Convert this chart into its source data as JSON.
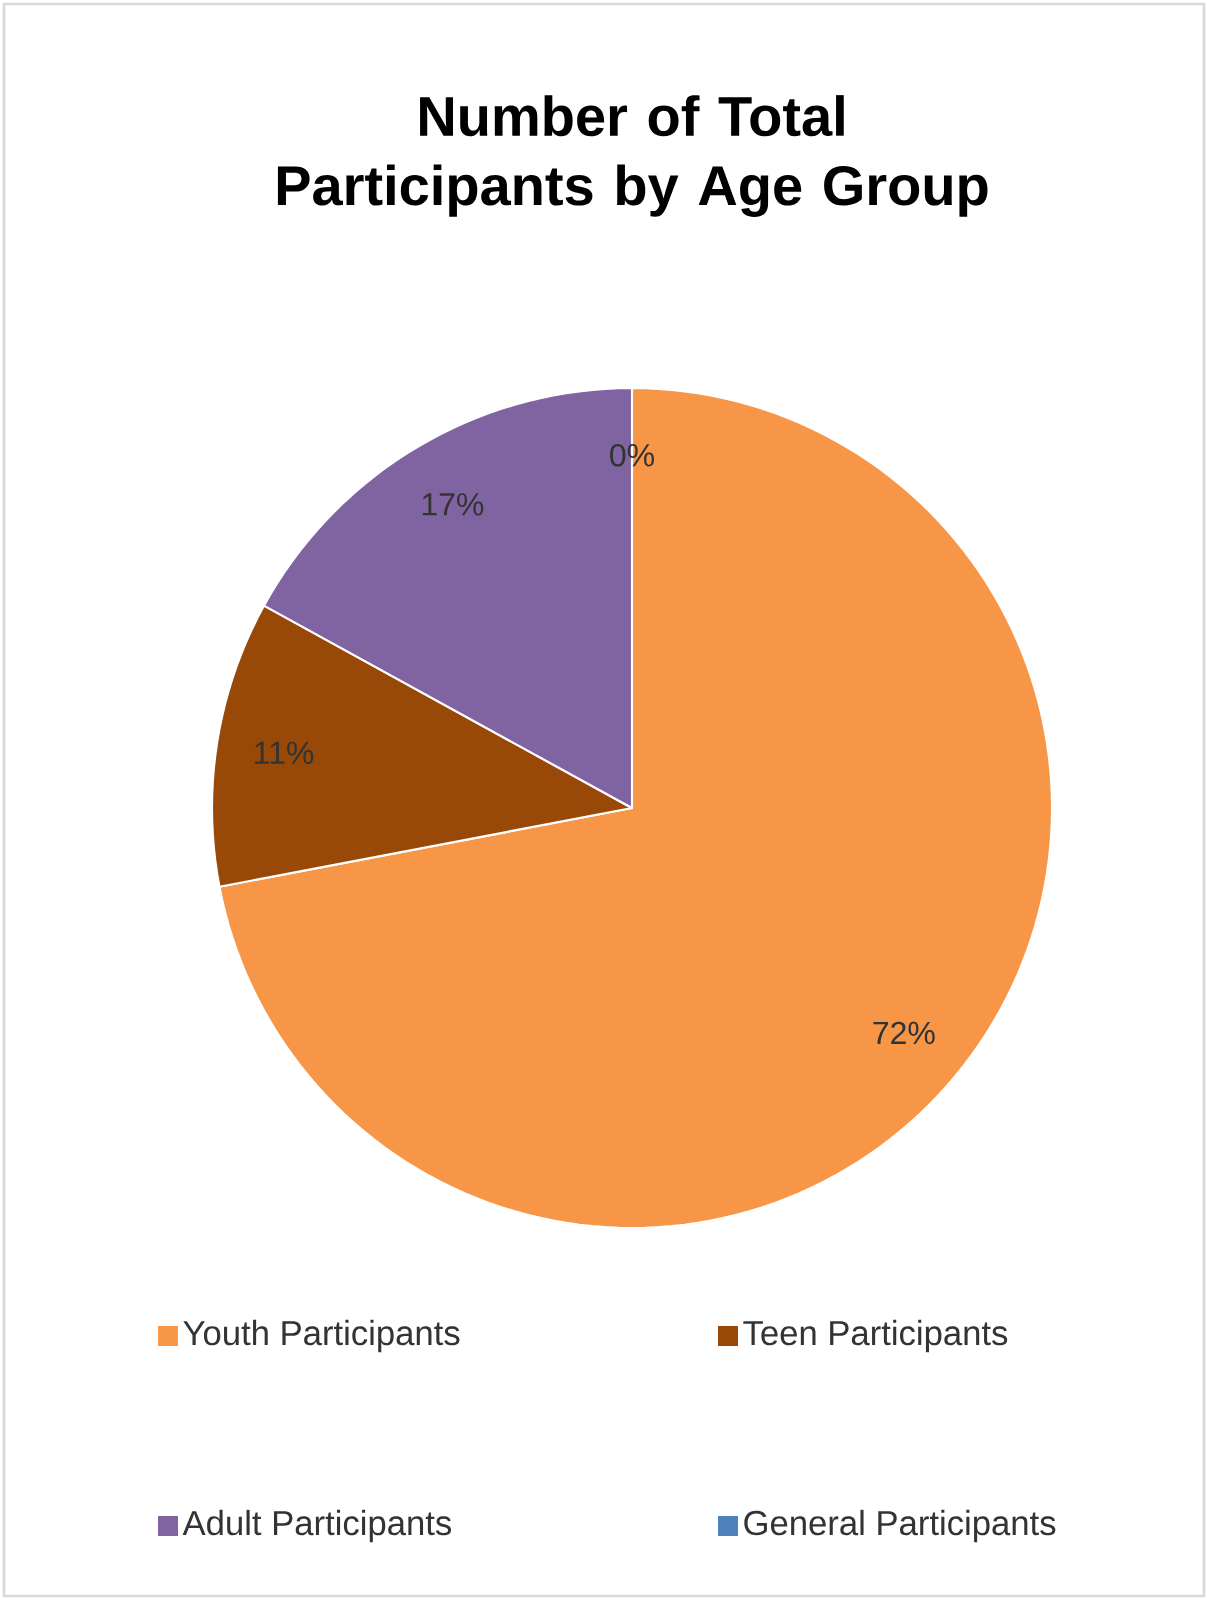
{
  "chart_data": {
    "type": "pie",
    "title": "Number of Total Participants by Age Group",
    "categories": [
      "Youth Participants",
      "Teen Participants",
      "Adult Participants",
      "General Participants"
    ],
    "values": [
      72,
      11,
      17,
      0
    ],
    "colors": [
      "#f79646",
      "#984807",
      "#8064a2",
      "#4f81bd"
    ],
    "value_labels": [
      "72%",
      "11%",
      "17%",
      "0%"
    ],
    "legend": "bottom"
  }
}
